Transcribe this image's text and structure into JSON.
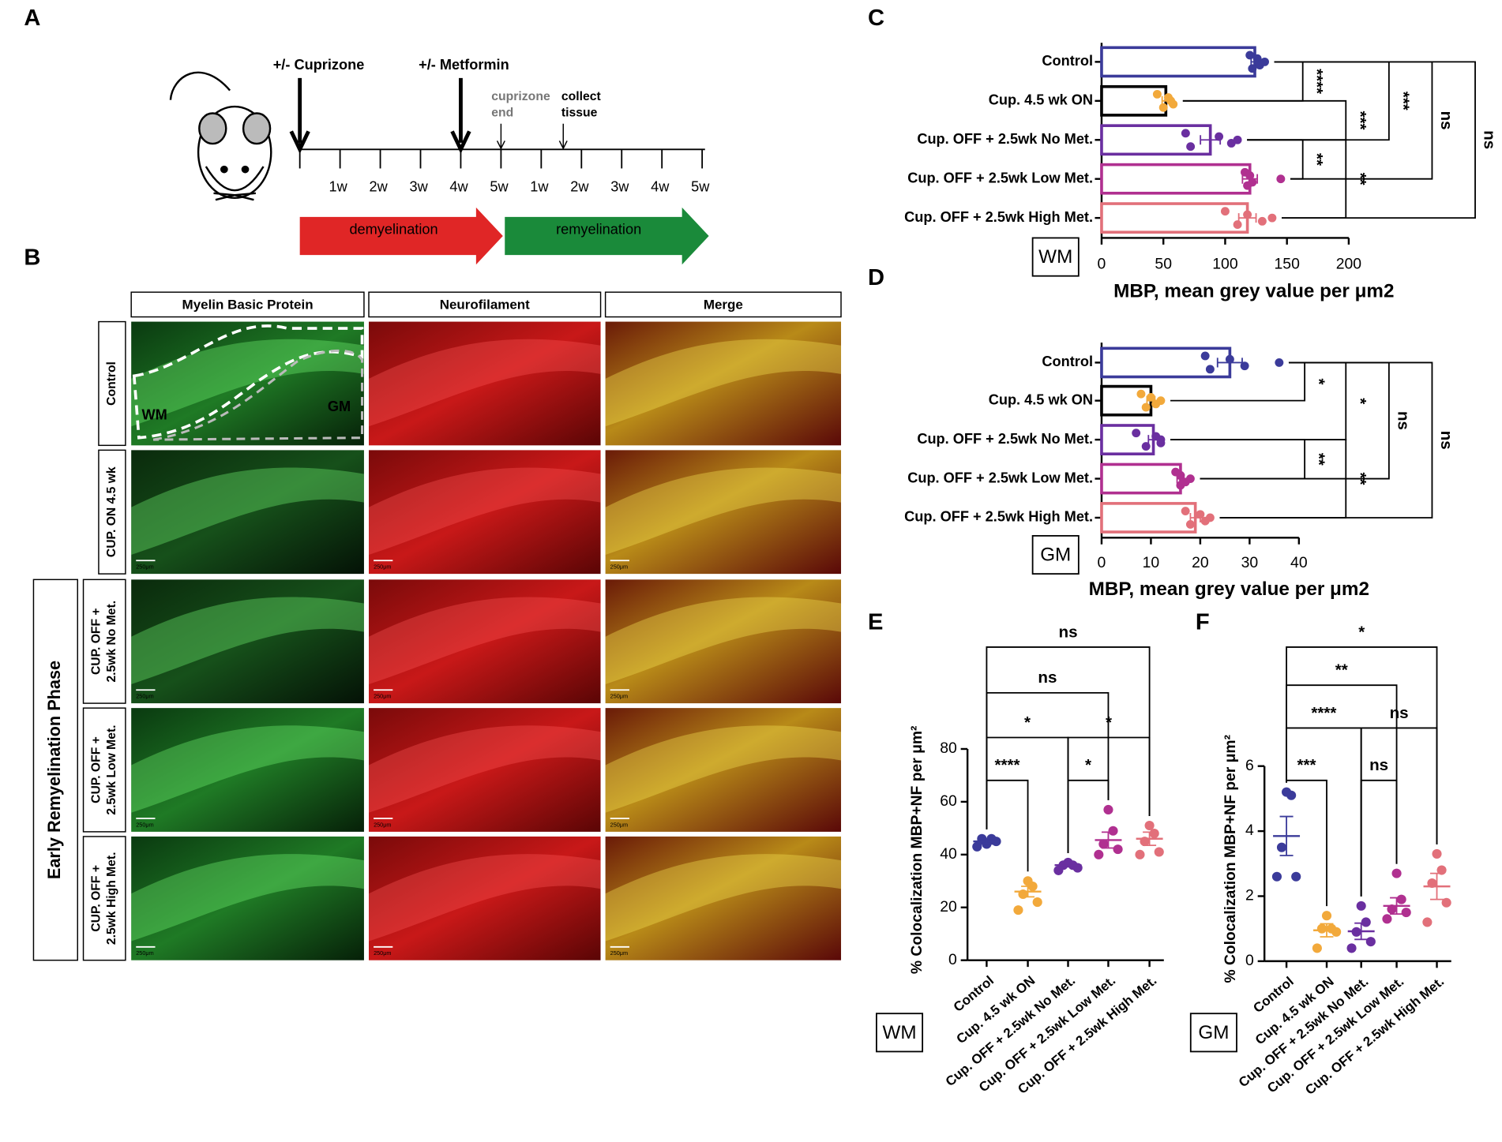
{
  "panel_labels": [
    "A",
    "B",
    "C",
    "D",
    "E",
    "F"
  ],
  "timeline": {
    "treatments": [
      "+/- Cuprizone",
      "+/- Metformin"
    ],
    "events": [
      [
        "cuprizone",
        "end"
      ],
      [
        "collect",
        "tissue"
      ]
    ],
    "weeks": [
      "1w",
      "2w",
      "3w",
      "4w",
      "5w",
      "1w",
      "2w",
      "3w",
      "4w",
      "5w"
    ],
    "phases": [
      "demyelination",
      "remyelination"
    ]
  },
  "micrographs": {
    "columns": [
      "Myelin Basic Protein",
      "Neurofilament",
      "Merge"
    ],
    "rows": [
      [
        "Control"
      ],
      [
        "CUP. ON 4.5 wk"
      ],
      [
        "CUP. OFF +",
        "2.5wk No Met."
      ],
      [
        "CUP. OFF +",
        "2.5wk Low Met."
      ],
      [
        "CUP. OFF +",
        "2.5wk High Met."
      ]
    ],
    "group": "Early Remyelination Phase",
    "regions": [
      "WM",
      "GM"
    ],
    "scale_bar": "250μm"
  },
  "chart_data": [
    {
      "type": "hbar",
      "categories": [
        "Control",
        "Cup. 4.5 wk ON",
        "Cup. OFF + 2.5wk No Met.",
        "Cup. OFF + 2.5wk Low Met.",
        "Cup. OFF + 2.5wk High Met."
      ],
      "values": [
        124,
        52,
        88,
        120,
        118
      ],
      "errors": [
        3,
        3,
        8,
        6,
        7
      ],
      "points": [
        [
          120,
          122,
          126,
          128,
          132
        ],
        [
          45,
          50,
          54,
          58,
          56
        ],
        [
          68,
          72,
          95,
          105,
          110
        ],
        [
          116,
          118,
          120,
          122,
          145
        ],
        [
          100,
          110,
          118,
          130,
          138
        ]
      ],
      "colors": [
        "#3b3b9a",
        "#f2a93b",
        "#6a2fa0",
        "#b03090",
        "#e2707a"
      ],
      "edge_colors": [
        "#3b3b9a",
        "#000000",
        "#6a2fa0",
        "#b03090",
        "#e2707a"
      ],
      "xlim": [
        0,
        200
      ],
      "xticks": [
        0,
        50,
        100,
        150,
        200
      ],
      "xlabel": "MBP, mean grey value per μm2",
      "region": "WM",
      "comparisons": [
        {
          "pair": [
            0,
            1
          ],
          "label": "****"
        },
        {
          "pair": [
            1,
            2
          ],
          "label": "***"
        },
        {
          "pair": [
            0,
            2
          ],
          "label": "***"
        },
        {
          "pair": [
            0,
            3
          ],
          "label": "ns"
        },
        {
          "pair": [
            0,
            4
          ],
          "label": "ns"
        },
        {
          "pair": [
            2,
            3
          ],
          "label": "**"
        },
        {
          "pair": [
            2,
            4
          ],
          "label": "**"
        }
      ]
    },
    {
      "type": "hbar",
      "categories": [
        "Control",
        "Cup. 4.5 wk ON",
        "Cup. OFF + 2.5wk No Met.",
        "Cup. OFF + 2.5wk Low Met.",
        "Cup. OFF + 2.5wk High Met."
      ],
      "values": [
        26,
        10,
        10.5,
        16,
        19
      ],
      "errors": [
        2.5,
        0.8,
        1,
        0.7,
        1
      ],
      "points": [
        [
          21,
          22,
          26,
          29,
          36
        ],
        [
          8,
          9,
          10,
          11,
          12
        ],
        [
          7,
          9,
          11,
          12,
          12
        ],
        [
          15,
          16,
          16,
          17,
          18
        ],
        [
          17,
          18,
          20,
          21,
          22
        ]
      ],
      "colors": [
        "#3b3b9a",
        "#f2a93b",
        "#6a2fa0",
        "#b03090",
        "#e2707a"
      ],
      "edge_colors": [
        "#3b3b9a",
        "#000000",
        "#6a2fa0",
        "#b03090",
        "#e2707a"
      ],
      "xlim": [
        0,
        40
      ],
      "xticks": [
        0,
        10,
        20,
        30,
        40
      ],
      "xlabel": "MBP, mean grey value per μm2",
      "region": "GM",
      "comparisons": [
        {
          "pair": [
            0,
            1
          ],
          "label": "*"
        },
        {
          "pair": [
            0,
            2
          ],
          "label": "*"
        },
        {
          "pair": [
            0,
            3
          ],
          "label": "ns"
        },
        {
          "pair": [
            0,
            4
          ],
          "label": "ns"
        },
        {
          "pair": [
            2,
            3
          ],
          "label": "**"
        },
        {
          "pair": [
            2,
            4
          ],
          "label": "**"
        }
      ]
    },
    {
      "type": "dot",
      "categories": [
        "Control",
        "Cup. 4.5 wk ON",
        "Cup. OFF + 2.5wk No Met.",
        "Cup. OFF + 2.5wk Low Met.",
        "Cup. OFF + 2.5wk High Met."
      ],
      "values": [
        45,
        26,
        36,
        45.5,
        46
      ],
      "errors": [
        1,
        2,
        0.6,
        3,
        2.5
      ],
      "points": [
        [
          43,
          45,
          46,
          46,
          44
        ],
        [
          19,
          22,
          25,
          28,
          30
        ],
        [
          34,
          35,
          36,
          36,
          37
        ],
        [
          40,
          42,
          44,
          49,
          57
        ],
        [
          40,
          41,
          45,
          48,
          51
        ]
      ],
      "colors": [
        "#3b3b9a",
        "#f2a93b",
        "#6a2fa0",
        "#b03090",
        "#e2707a"
      ],
      "ylim": [
        0,
        80
      ],
      "yticks": [
        0,
        20,
        40,
        60,
        80
      ],
      "ylabel": "% Colocalization MBP+NF per μm²",
      "region": "WM",
      "comparisons": [
        {
          "pair": [
            0,
            1
          ],
          "label": "****"
        },
        {
          "pair": [
            0,
            2
          ],
          "label": "*"
        },
        {
          "pair": [
            2,
            3
          ],
          "label": "*"
        },
        {
          "pair": [
            2,
            4
          ],
          "label": "*"
        },
        {
          "pair": [
            0,
            3
          ],
          "label": "ns"
        },
        {
          "pair": [
            0,
            4
          ],
          "label": "ns"
        }
      ]
    },
    {
      "type": "dot",
      "categories": [
        "Control",
        "Cup. 4.5 wk ON",
        "Cup. OFF + 2.5wk No Met.",
        "Cup. OFF + 2.5wk Low Met.",
        "Cup. OFF + 2.5wk High Met."
      ],
      "values": [
        3.85,
        0.95,
        0.92,
        1.7,
        2.3
      ],
      "errors": [
        0.6,
        0.2,
        0.25,
        0.25,
        0.4
      ],
      "points": [
        [
          2.6,
          2.6,
          3.5,
          5.1,
          5.2
        ],
        [
          0.4,
          0.9,
          1.0,
          1.0,
          1.4
        ],
        [
          0.4,
          0.6,
          0.9,
          1.2,
          1.7
        ],
        [
          1.3,
          1.5,
          1.6,
          1.9,
          2.7
        ],
        [
          1.2,
          1.8,
          2.4,
          2.8,
          3.3
        ]
      ],
      "colors": [
        "#3b3b9a",
        "#f2a93b",
        "#6a2fa0",
        "#b03090",
        "#e2707a"
      ],
      "ylim": [
        0,
        6
      ],
      "yticks": [
        0,
        2,
        4,
        6
      ],
      "ylabel": "% Colocalization MBP+NF per μm²",
      "region": "GM",
      "comparisons": [
        {
          "pair": [
            0,
            1
          ],
          "label": "***"
        },
        {
          "pair": [
            0,
            2
          ],
          "label": "****"
        },
        {
          "pair": [
            2,
            3
          ],
          "label": "ns"
        },
        {
          "pair": [
            2,
            4
          ],
          "label": "ns"
        },
        {
          "pair": [
            0,
            3
          ],
          "label": "**"
        },
        {
          "pair": [
            0,
            4
          ],
          "label": "*"
        }
      ]
    }
  ]
}
